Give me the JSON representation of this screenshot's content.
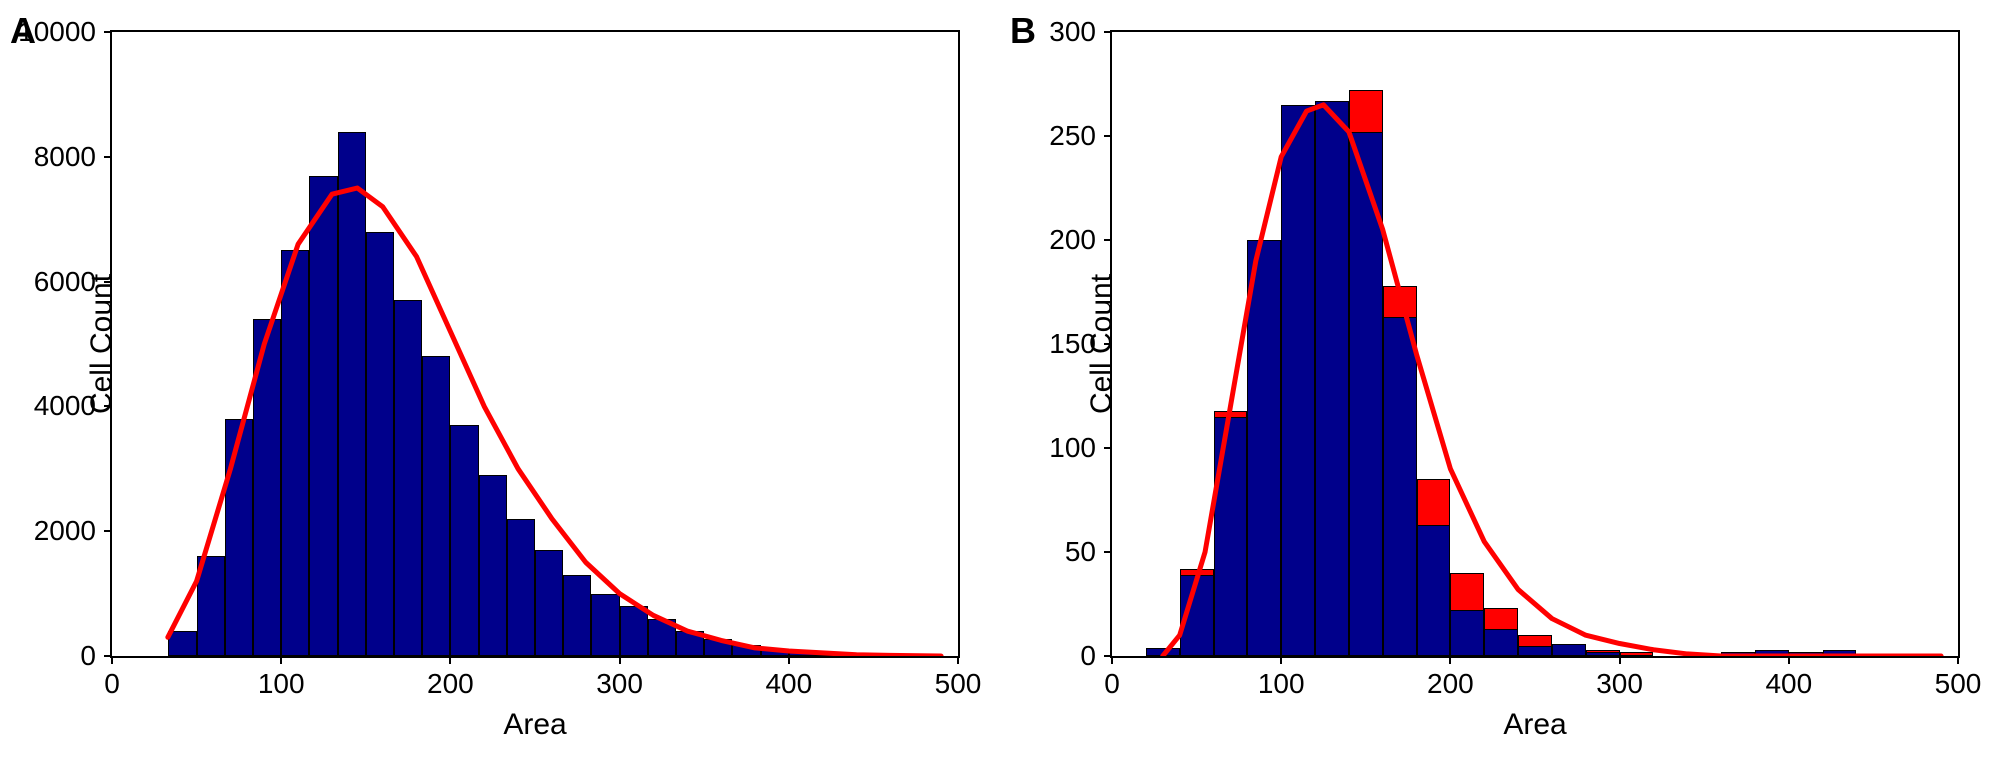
{
  "panel_a": {
    "label": "A",
    "type": "histogram",
    "xlabel": "Area",
    "ylabel": "Cell Count",
    "xlim": [
      0,
      500
    ],
    "ylim": [
      0,
      10000
    ],
    "xtick_start": 0,
    "xtick_step": 100,
    "ytick_start": 0,
    "ytick_step": 2000,
    "tick_fontsize": 28,
    "label_fontsize": 30,
    "bar_color": "#00008b",
    "bar_border_color": "#000000",
    "curve_color": "#ff0000",
    "curve_width": 5,
    "background_color": "#ffffff",
    "bin_width": 16.667,
    "bars": [
      {
        "x": 33.33,
        "count": 400
      },
      {
        "x": 50.0,
        "count": 1600
      },
      {
        "x": 66.67,
        "count": 3800
      },
      {
        "x": 83.33,
        "count": 5400
      },
      {
        "x": 100.0,
        "count": 6500
      },
      {
        "x": 116.67,
        "count": 7700
      },
      {
        "x": 133.33,
        "count": 8400
      },
      {
        "x": 150.0,
        "count": 6800
      },
      {
        "x": 166.67,
        "count": 5700
      },
      {
        "x": 183.33,
        "count": 4800
      },
      {
        "x": 200.0,
        "count": 3700
      },
      {
        "x": 216.67,
        "count": 2900
      },
      {
        "x": 233.33,
        "count": 2200
      },
      {
        "x": 250.0,
        "count": 1700
      },
      {
        "x": 266.67,
        "count": 1300
      },
      {
        "x": 283.33,
        "count": 1000
      },
      {
        "x": 300.0,
        "count": 800
      },
      {
        "x": 316.67,
        "count": 600
      },
      {
        "x": 333.33,
        "count": 400
      },
      {
        "x": 350.0,
        "count": 280
      },
      {
        "x": 366.67,
        "count": 180
      },
      {
        "x": 383.33,
        "count": 120
      },
      {
        "x": 400.0,
        "count": 60
      },
      {
        "x": 416.67,
        "count": 30
      },
      {
        "x": 433.33,
        "count": 10
      }
    ],
    "curve_points": [
      {
        "x": 33,
        "y": 300
      },
      {
        "x": 50,
        "y": 1200
      },
      {
        "x": 70,
        "y": 3000
      },
      {
        "x": 90,
        "y": 5000
      },
      {
        "x": 110,
        "y": 6600
      },
      {
        "x": 130,
        "y": 7400
      },
      {
        "x": 145,
        "y": 7500
      },
      {
        "x": 160,
        "y": 7200
      },
      {
        "x": 180,
        "y": 6400
      },
      {
        "x": 200,
        "y": 5200
      },
      {
        "x": 220,
        "y": 4000
      },
      {
        "x": 240,
        "y": 3000
      },
      {
        "x": 260,
        "y": 2200
      },
      {
        "x": 280,
        "y": 1500
      },
      {
        "x": 300,
        "y": 1000
      },
      {
        "x": 320,
        "y": 650
      },
      {
        "x": 340,
        "y": 400
      },
      {
        "x": 360,
        "y": 250
      },
      {
        "x": 380,
        "y": 130
      },
      {
        "x": 400,
        "y": 80
      },
      {
        "x": 420,
        "y": 50
      },
      {
        "x": 440,
        "y": 20
      },
      {
        "x": 460,
        "y": 10
      },
      {
        "x": 490,
        "y": 0
      }
    ]
  },
  "panel_b": {
    "label": "B",
    "type": "histogram",
    "xlabel": "Area",
    "ylabel": "Cell Count",
    "xlim": [
      0,
      500
    ],
    "ylim": [
      0,
      300
    ],
    "xtick_start": 0,
    "xtick_step": 100,
    "ytick_start": 0,
    "ytick_step": 50,
    "tick_fontsize": 28,
    "label_fontsize": 30,
    "bar_back_color": "#ff0000",
    "bar_front_color": "#00008b",
    "bar_border_color": "#000000",
    "curve_color": "#ff0000",
    "curve_width": 5,
    "background_color": "#ffffff",
    "bin_width": 20,
    "bars": [
      {
        "x": 20,
        "back": 4,
        "front": 4
      },
      {
        "x": 40,
        "back": 42,
        "front": 39
      },
      {
        "x": 60,
        "back": 118,
        "front": 115
      },
      {
        "x": 80,
        "back": 200,
        "front": 200
      },
      {
        "x": 100,
        "back": 265,
        "front": 265
      },
      {
        "x": 120,
        "back": 267,
        "front": 267
      },
      {
        "x": 140,
        "back": 272,
        "front": 252
      },
      {
        "x": 160,
        "back": 178,
        "front": 163
      },
      {
        "x": 180,
        "back": 85,
        "front": 63
      },
      {
        "x": 200,
        "back": 40,
        "front": 22
      },
      {
        "x": 220,
        "back": 23,
        "front": 13
      },
      {
        "x": 240,
        "back": 10,
        "front": 5
      },
      {
        "x": 260,
        "back": 6,
        "front": 6
      },
      {
        "x": 280,
        "back": 3,
        "front": 2
      },
      {
        "x": 300,
        "back": 2,
        "front": 0
      },
      {
        "x": 360,
        "back": 2,
        "front": 2
      },
      {
        "x": 380,
        "back": 3,
        "front": 3
      },
      {
        "x": 400,
        "back": 2,
        "front": 2
      },
      {
        "x": 420,
        "back": 3,
        "front": 3
      }
    ],
    "curve_points": [
      {
        "x": 30,
        "y": 0
      },
      {
        "x": 40,
        "y": 10
      },
      {
        "x": 55,
        "y": 50
      },
      {
        "x": 70,
        "y": 120
      },
      {
        "x": 85,
        "y": 190
      },
      {
        "x": 100,
        "y": 240
      },
      {
        "x": 115,
        "y": 262
      },
      {
        "x": 125,
        "y": 265
      },
      {
        "x": 140,
        "y": 252
      },
      {
        "x": 160,
        "y": 205
      },
      {
        "x": 180,
        "y": 145
      },
      {
        "x": 200,
        "y": 90
      },
      {
        "x": 220,
        "y": 55
      },
      {
        "x": 240,
        "y": 32
      },
      {
        "x": 260,
        "y": 18
      },
      {
        "x": 280,
        "y": 10
      },
      {
        "x": 300,
        "y": 6
      },
      {
        "x": 320,
        "y": 3
      },
      {
        "x": 340,
        "y": 1
      },
      {
        "x": 360,
        "y": 0
      },
      {
        "x": 490,
        "y": 0
      }
    ]
  }
}
